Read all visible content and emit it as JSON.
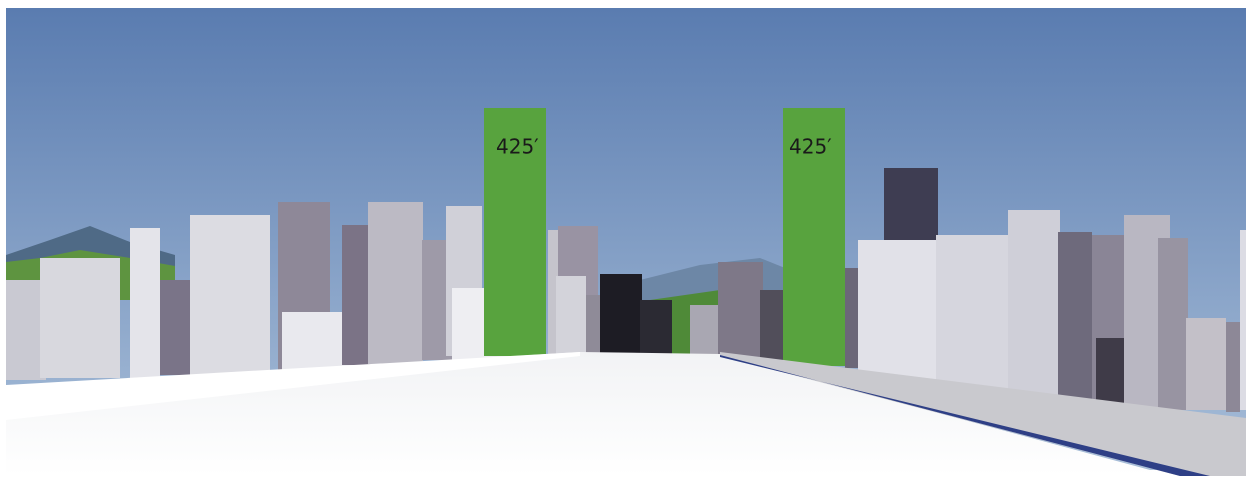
{
  "towers": [
    {
      "label": "425′"
    },
    {
      "label": "425′"
    }
  ]
}
